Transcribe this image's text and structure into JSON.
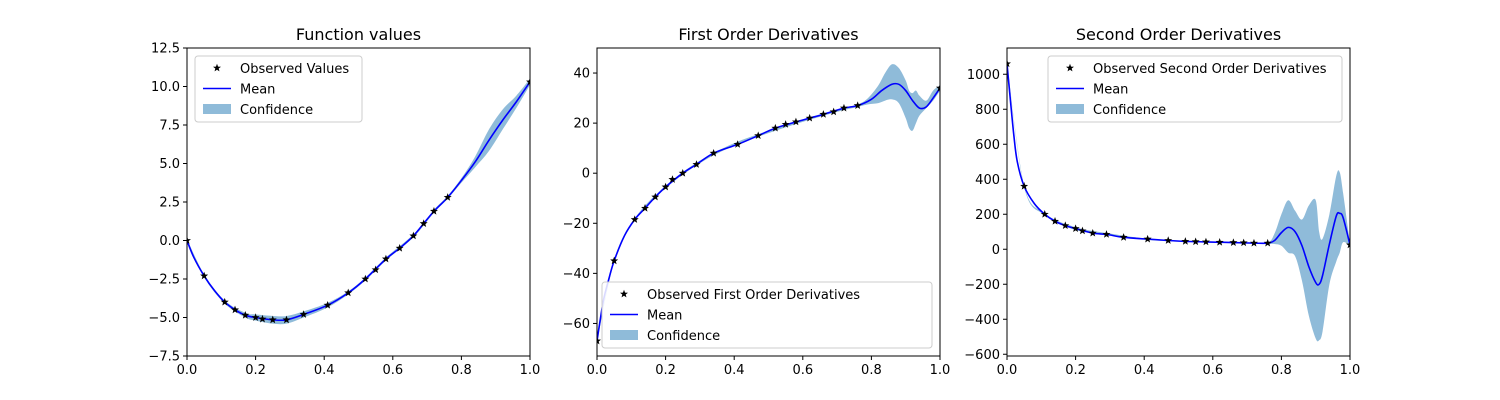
{
  "colors": {
    "mean": "#0000ff",
    "confidence": "#1f77b4",
    "observed": "#000000",
    "axis": "#000000"
  },
  "chart_data": [
    {
      "type": "line",
      "title": "Function values",
      "xlabel": "",
      "ylabel": "",
      "xlim": [
        0.0,
        1.0
      ],
      "ylim": [
        -7.5,
        12.5
      ],
      "xticks": [
        0.0,
        0.2,
        0.4,
        0.6,
        0.8,
        1.0
      ],
      "xtick_labels": [
        "0.0",
        "0.2",
        "0.4",
        "0.6",
        "0.8",
        "1.0"
      ],
      "yticks": [
        -7.5,
        -5.0,
        -2.5,
        0.0,
        2.5,
        5.0,
        7.5,
        10.0,
        12.5
      ],
      "ytick_labels": [
        "−7.5",
        "−5.0",
        "−2.5",
        "0.0",
        "2.5",
        "5.0",
        "7.5",
        "10.0",
        "12.5"
      ],
      "legend": {
        "placement": "upper-left",
        "entries": [
          "Observed Values",
          "Mean",
          "Confidence"
        ]
      },
      "series": [
        {
          "name": "Observed Values",
          "kind": "scatter",
          "x": [
            0.0,
            0.05,
            0.11,
            0.14,
            0.17,
            0.2,
            0.22,
            0.25,
            0.29,
            0.34,
            0.41,
            0.47,
            0.52,
            0.55,
            0.58,
            0.62,
            0.66,
            0.69,
            0.72,
            0.76,
            1.0
          ],
          "y": [
            0.0,
            -2.3,
            -4.0,
            -4.5,
            -4.85,
            -5.0,
            -5.1,
            -5.15,
            -5.15,
            -4.8,
            -4.2,
            -3.4,
            -2.5,
            -1.9,
            -1.2,
            -0.5,
            0.3,
            1.1,
            1.9,
            2.8,
            10.3
          ]
        },
        {
          "name": "Mean",
          "kind": "line",
          "x": [
            0.0,
            0.02,
            0.05,
            0.08,
            0.11,
            0.14,
            0.17,
            0.2,
            0.25,
            0.29,
            0.34,
            0.41,
            0.47,
            0.52,
            0.58,
            0.62,
            0.66,
            0.69,
            0.72,
            0.76,
            0.8,
            0.84,
            0.88,
            0.92,
            0.96,
            1.0
          ],
          "y": [
            0.0,
            -1.1,
            -2.3,
            -3.25,
            -4.0,
            -4.5,
            -4.85,
            -5.0,
            -5.15,
            -5.15,
            -4.8,
            -4.2,
            -3.4,
            -2.5,
            -1.2,
            -0.5,
            0.3,
            1.1,
            1.9,
            2.8,
            3.9,
            5.1,
            6.5,
            7.8,
            9.0,
            10.3
          ]
        },
        {
          "name": "Confidence",
          "kind": "band",
          "x": [
            0.0,
            0.05,
            0.11,
            0.17,
            0.2,
            0.25,
            0.29,
            0.34,
            0.41,
            0.47,
            0.52,
            0.58,
            0.66,
            0.72,
            0.76,
            0.8,
            0.84,
            0.88,
            0.92,
            0.96,
            1.0
          ],
          "lower": [
            -0.1,
            -2.4,
            -4.1,
            -5.0,
            -5.2,
            -5.4,
            -5.4,
            -5.0,
            -4.35,
            -3.5,
            -2.6,
            -1.3,
            0.2,
            1.8,
            2.7,
            3.75,
            4.75,
            5.8,
            7.2,
            8.6,
            10.1
          ],
          "upper": [
            0.1,
            -2.2,
            -3.9,
            -4.7,
            -4.8,
            -4.9,
            -4.9,
            -4.6,
            -4.05,
            -3.3,
            -2.4,
            -1.1,
            0.4,
            2.0,
            2.9,
            4.05,
            5.45,
            7.2,
            8.5,
            9.4,
            10.5
          ]
        }
      ]
    },
    {
      "type": "line",
      "title": "First Order Derivatives",
      "xlabel": "",
      "ylabel": "",
      "xlim": [
        0.0,
        1.0
      ],
      "ylim": [
        -73,
        50
      ],
      "xticks": [
        0.0,
        0.2,
        0.4,
        0.6,
        0.8,
        1.0
      ],
      "xtick_labels": [
        "0.0",
        "0.2",
        "0.4",
        "0.6",
        "0.8",
        "1.0"
      ],
      "yticks": [
        -60,
        -40,
        -20,
        0,
        20,
        40
      ],
      "ytick_labels": [
        "−60",
        "−40",
        "−20",
        "0",
        "20",
        "40"
      ],
      "legend": {
        "placement": "lower-right",
        "entries": [
          "Observed First Order Derivatives",
          "Mean",
          "Confidence"
        ]
      },
      "series": [
        {
          "name": "Observed First Order Derivatives",
          "kind": "scatter",
          "x": [
            0.0,
            0.05,
            0.11,
            0.14,
            0.17,
            0.2,
            0.22,
            0.25,
            0.29,
            0.34,
            0.41,
            0.47,
            0.52,
            0.55,
            0.58,
            0.62,
            0.66,
            0.69,
            0.72,
            0.76,
            1.0
          ],
          "y": [
            -67,
            -35,
            -18.5,
            -14,
            -9.5,
            -5.5,
            -2.5,
            0,
            3.5,
            8,
            11.5,
            15,
            18,
            19.5,
            20.5,
            22,
            23.5,
            24.5,
            26,
            27,
            34
          ]
        },
        {
          "name": "Mean",
          "kind": "line",
          "x": [
            0.0,
            0.01,
            0.02,
            0.035,
            0.05,
            0.08,
            0.11,
            0.14,
            0.17,
            0.2,
            0.25,
            0.29,
            0.34,
            0.41,
            0.47,
            0.52,
            0.58,
            0.62,
            0.66,
            0.72,
            0.76,
            0.8,
            0.83,
            0.86,
            0.88,
            0.9,
            0.92,
            0.94,
            0.96,
            0.98,
            1.0
          ],
          "y": [
            -67,
            -58,
            -50,
            -42,
            -35,
            -25,
            -18.5,
            -14,
            -9.5,
            -5.5,
            0,
            3.5,
            8,
            11.5,
            15,
            18,
            20.5,
            22,
            23.5,
            26,
            27,
            29.5,
            33,
            35.5,
            35.5,
            33,
            29,
            26,
            26.5,
            30,
            34
          ]
        },
        {
          "name": "Confidence",
          "kind": "band",
          "x": [
            0.0,
            0.05,
            0.11,
            0.2,
            0.3,
            0.4,
            0.5,
            0.6,
            0.7,
            0.76,
            0.79,
            0.82,
            0.84,
            0.86,
            0.88,
            0.9,
            0.91,
            0.92,
            0.93,
            0.94,
            0.96,
            0.98,
            1.0
          ],
          "lower": [
            -67.5,
            -35.5,
            -19,
            -6,
            4,
            11,
            16,
            20.5,
            24.5,
            26.5,
            27.5,
            28,
            29,
            29.5,
            28,
            22,
            18,
            17,
            20,
            23,
            26,
            29,
            33
          ],
          "upper": [
            -66.5,
            -34.5,
            -18,
            -5,
            5,
            12,
            17,
            21.5,
            25.5,
            27.5,
            30,
            35,
            40,
            43.5,
            42,
            37,
            33,
            32,
            33,
            31,
            29,
            33,
            35
          ]
        }
      ]
    },
    {
      "type": "line",
      "title": "Second Order Derivatives",
      "xlabel": "",
      "ylabel": "",
      "xlim": [
        0.0,
        1.0
      ],
      "ylim": [
        -610,
        1150
      ],
      "xticks": [
        0.0,
        0.2,
        0.4,
        0.6,
        0.8,
        1.0
      ],
      "xtick_labels": [
        "0.0",
        "0.2",
        "0.4",
        "0.6",
        "0.8",
        "1.0"
      ],
      "yticks": [
        -600,
        -400,
        -200,
        0,
        200,
        400,
        600,
        800,
        1000
      ],
      "ytick_labels": [
        "−600",
        "−400",
        "−200",
        "0",
        "200",
        "400",
        "600",
        "800",
        "1000"
      ],
      "legend": {
        "placement": "upper-right",
        "entries": [
          "Observed Second Order Derivatives",
          "Mean",
          "Confidence"
        ]
      },
      "series": [
        {
          "name": "Observed Second Order Derivatives",
          "kind": "scatter",
          "x": [
            0.0,
            0.05,
            0.11,
            0.14,
            0.17,
            0.2,
            0.22,
            0.25,
            0.29,
            0.34,
            0.41,
            0.47,
            0.52,
            0.55,
            0.58,
            0.62,
            0.66,
            0.69,
            0.72,
            0.76,
            1.0
          ],
          "y": [
            1060,
            360,
            200,
            160,
            135,
            118,
            105,
            92,
            85,
            68,
            58,
            50,
            45,
            43,
            42,
            40,
            38,
            37,
            35,
            35,
            25
          ]
        },
        {
          "name": "Mean",
          "kind": "line",
          "x": [
            0.0,
            0.01,
            0.02,
            0.03,
            0.05,
            0.08,
            0.11,
            0.14,
            0.17,
            0.2,
            0.25,
            0.29,
            0.34,
            0.41,
            0.47,
            0.52,
            0.58,
            0.62,
            0.66,
            0.72,
            0.76,
            0.78,
            0.8,
            0.82,
            0.84,
            0.86,
            0.88,
            0.9,
            0.91,
            0.92,
            0.94,
            0.96,
            0.97,
            0.98,
            1.0
          ],
          "y": [
            1060,
            850,
            650,
            500,
            360,
            260,
            200,
            160,
            135,
            118,
            92,
            85,
            68,
            58,
            50,
            45,
            42,
            40,
            38,
            35,
            35,
            50,
            95,
            125,
            100,
            20,
            -100,
            -190,
            -200,
            -150,
            30,
            190,
            205,
            180,
            25
          ]
        },
        {
          "name": "Confidence",
          "kind": "band",
          "x": [
            0.0,
            0.05,
            0.11,
            0.2,
            0.3,
            0.4,
            0.5,
            0.6,
            0.7,
            0.76,
            0.78,
            0.8,
            0.82,
            0.84,
            0.86,
            0.88,
            0.9,
            0.91,
            0.92,
            0.94,
            0.96,
            0.97,
            0.98,
            1.0
          ],
          "lower": [
            1055,
            355,
            195,
            110,
            80,
            55,
            43,
            38,
            33,
            30,
            30,
            20,
            -20,
            -40,
            -180,
            -380,
            -510,
            -520,
            -470,
            -200,
            -70,
            -20,
            40,
            20
          ],
          "upper": [
            1065,
            365,
            205,
            126,
            90,
            62,
            48,
            44,
            39,
            40,
            90,
            200,
            280,
            220,
            170,
            250,
            280,
            100,
            60,
            200,
            420,
            440,
            320,
            30
          ]
        }
      ]
    }
  ]
}
